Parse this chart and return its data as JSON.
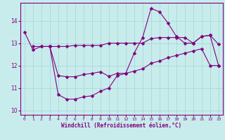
{
  "title": "",
  "xlabel": "Windchill (Refroidissement éolien,°C)",
  "ylabel": "",
  "bg_color": "#c8ecec",
  "line_color": "#800080",
  "grid_color": "#a8d8d8",
  "xlim": [
    -0.5,
    23.5
  ],
  "ylim": [
    9.8,
    14.8
  ],
  "yticks": [
    10,
    11,
    12,
    13,
    14
  ],
  "xticks": [
    0,
    1,
    2,
    3,
    4,
    5,
    6,
    7,
    8,
    9,
    10,
    11,
    12,
    13,
    14,
    15,
    16,
    17,
    18,
    19,
    20,
    21,
    22,
    23
  ],
  "series1_x": [
    0,
    1,
    2,
    3,
    4,
    5,
    6,
    7,
    8,
    9,
    10,
    11,
    12,
    13,
    14,
    15,
    16,
    17,
    18,
    19,
    20,
    21,
    22,
    23
  ],
  "series1_y": [
    13.5,
    12.7,
    12.85,
    12.85,
    10.7,
    10.5,
    10.5,
    10.6,
    10.65,
    10.85,
    11.0,
    11.55,
    11.65,
    12.55,
    13.25,
    14.55,
    14.4,
    13.9,
    13.3,
    13.0,
    13.0,
    13.3,
    13.35,
    12.0
  ],
  "series2_x": [
    1,
    2,
    3,
    4,
    5,
    6,
    7,
    8,
    9,
    10,
    11,
    12,
    13,
    14,
    15,
    16,
    17,
    18,
    19,
    20,
    21,
    22,
    23
  ],
  "series2_y": [
    12.85,
    12.85,
    12.85,
    12.85,
    12.85,
    12.9,
    12.9,
    12.9,
    12.9,
    13.0,
    13.0,
    13.0,
    13.0,
    13.0,
    13.2,
    13.25,
    13.25,
    13.25,
    13.25,
    13.0,
    13.3,
    13.35,
    12.95
  ],
  "series3_x": [
    3,
    4,
    5,
    6,
    7,
    8,
    9,
    10,
    11,
    12,
    13,
    14,
    15,
    16,
    17,
    18,
    19,
    20,
    21,
    22,
    23
  ],
  "series3_y": [
    12.85,
    11.55,
    11.5,
    11.5,
    11.6,
    11.65,
    11.72,
    11.52,
    11.65,
    11.65,
    11.75,
    11.85,
    12.1,
    12.2,
    12.35,
    12.45,
    12.55,
    12.65,
    12.75,
    12.0,
    12.0
  ],
  "marker": "D",
  "markersize": 2.5,
  "linewidth": 0.8
}
